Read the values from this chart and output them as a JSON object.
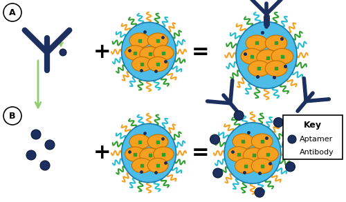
{
  "bg_color": "#ffffff",
  "navy": "#1c2f5e",
  "light_blue": "#4dbde8",
  "orange": "#f5a020",
  "green_wavy": "#2e9e2e",
  "cyan_wavy": "#28bcd0",
  "arrow_green": "#90cc70",
  "fig_width": 5.0,
  "fig_height": 2.93,
  "dpi": 100,
  "key_title": "Key",
  "key_aptamer": "Aptamer",
  "key_antibody": "Antibody",
  "label_A": "A",
  "label_B": "B"
}
